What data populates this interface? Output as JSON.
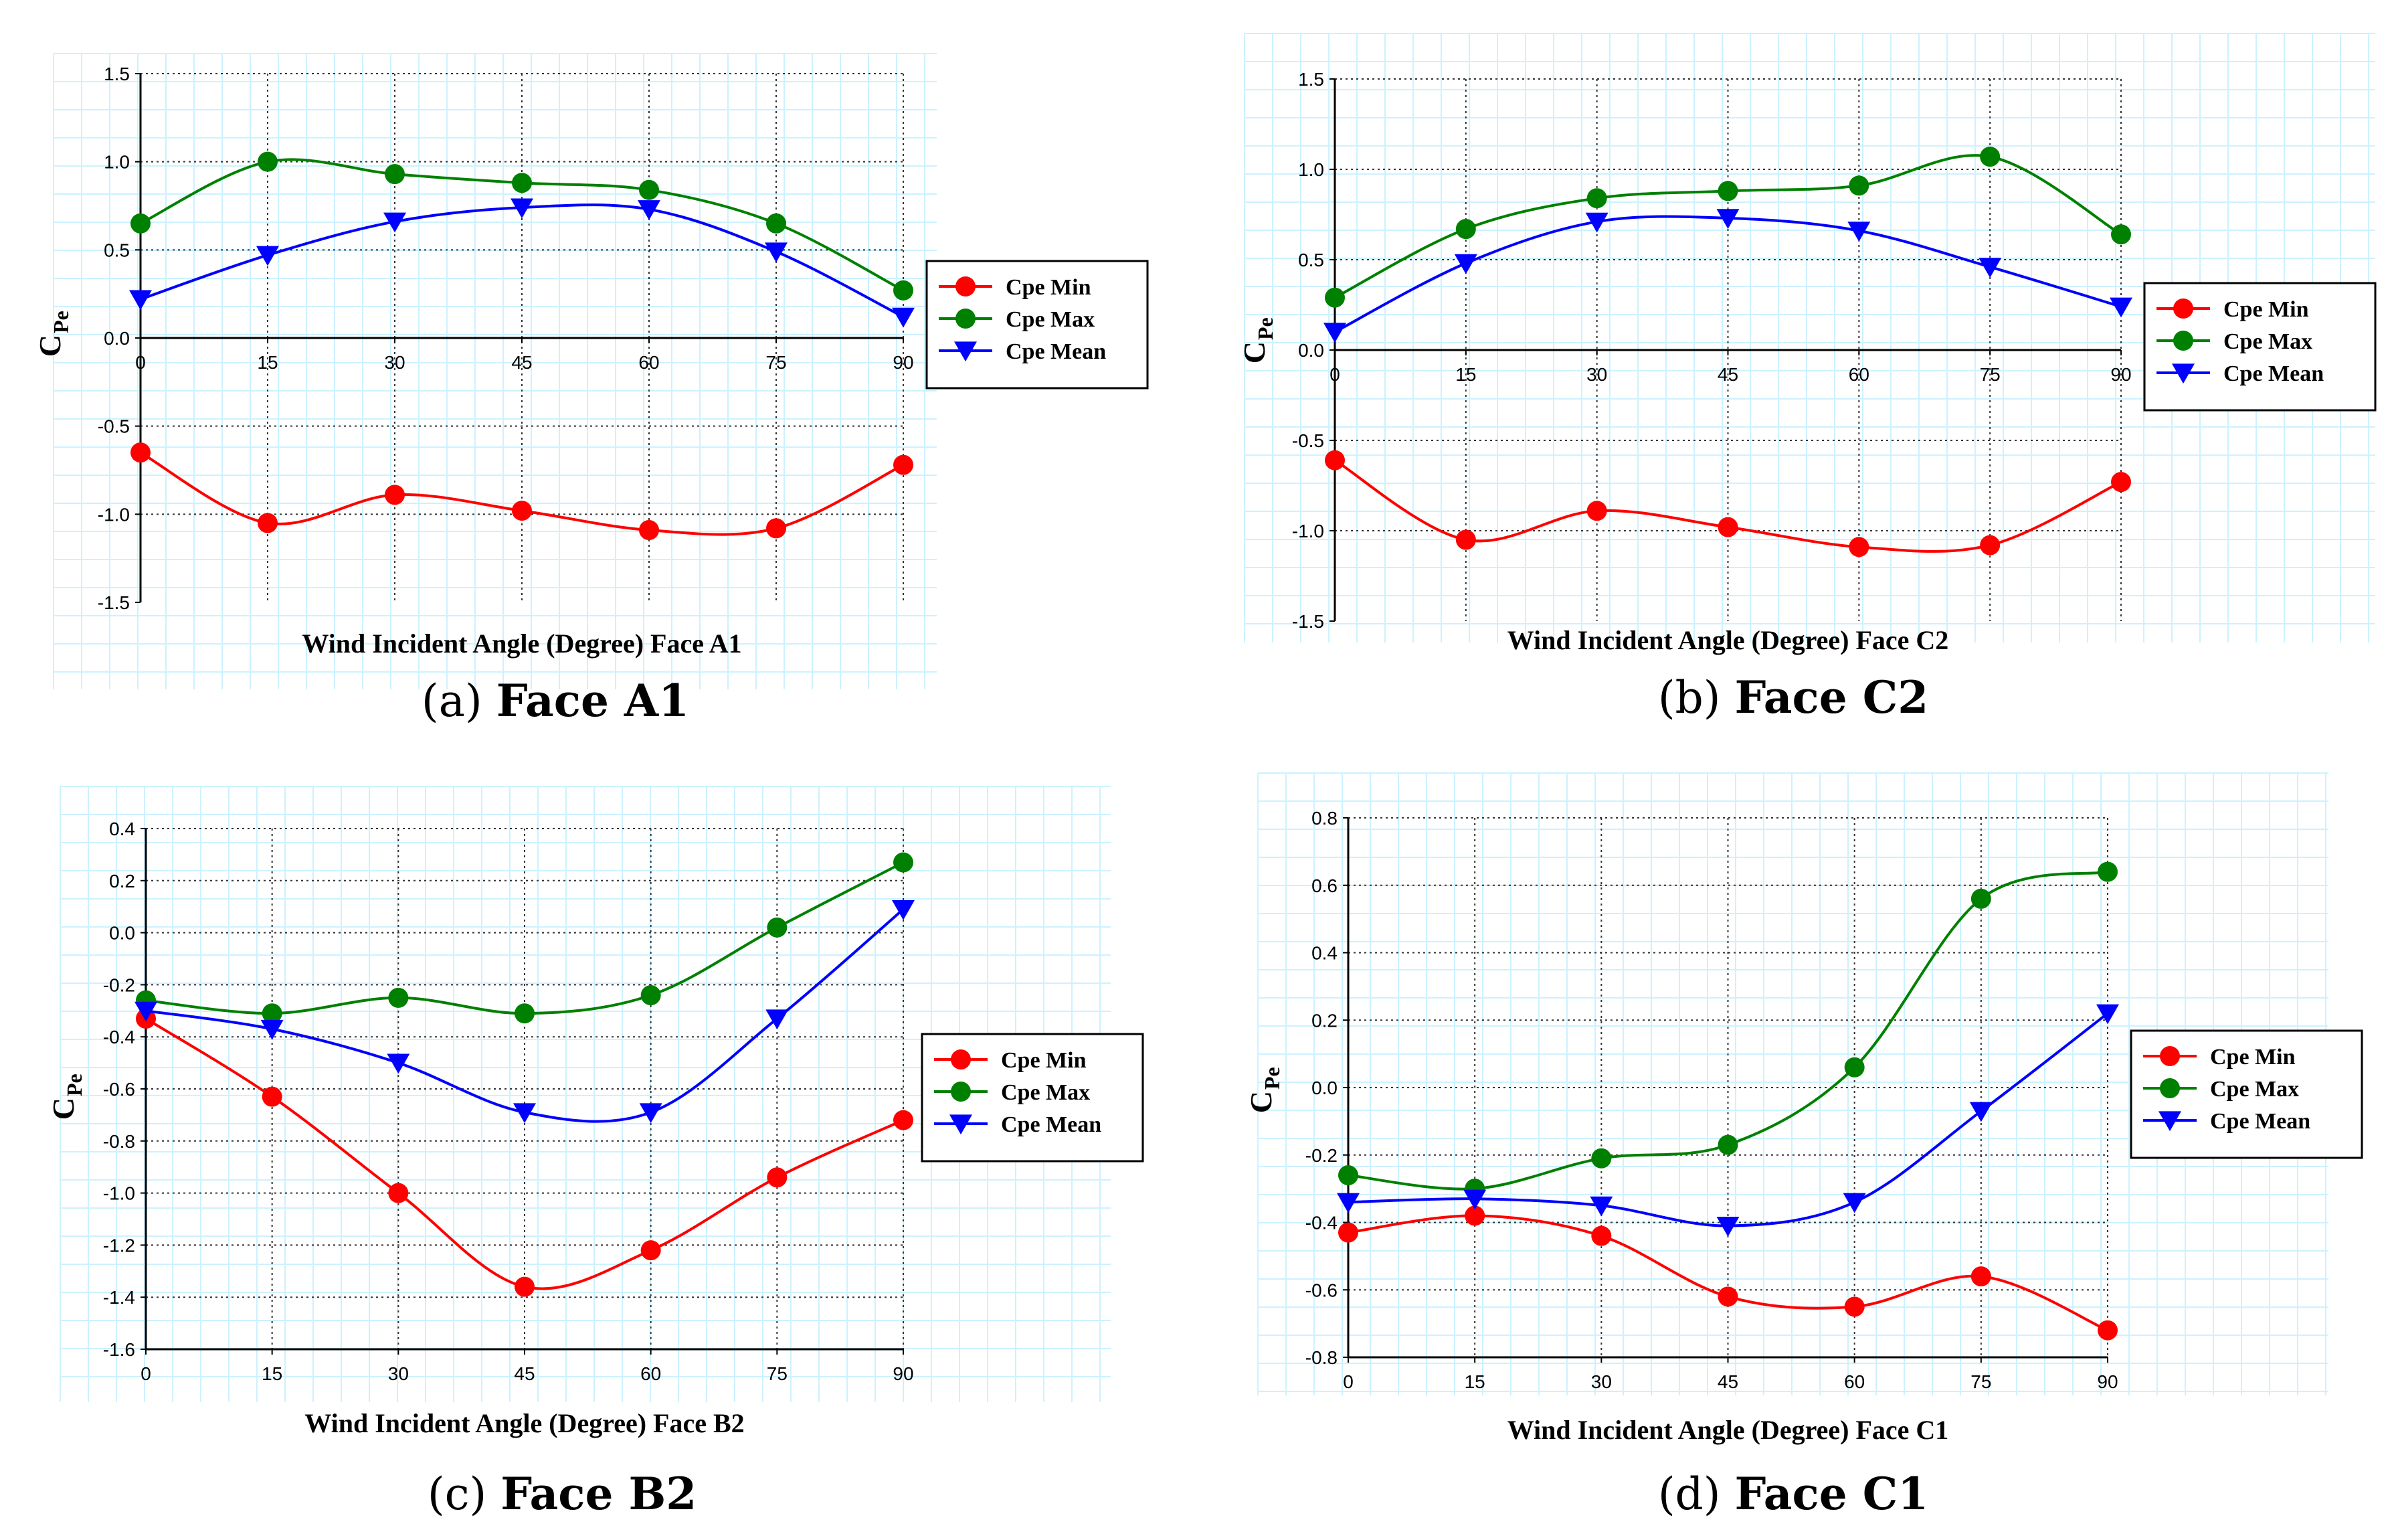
{
  "chart_data": [
    {
      "type": "line",
      "caption_label": "(a)",
      "caption_title": "Face A1",
      "xlabel": "Wind Incident Angle (Degree) Face A1",
      "ylabel_main": "C",
      "ylabel_sub": "Pe",
      "x": [
        0,
        15,
        30,
        45,
        60,
        75,
        90
      ],
      "xlim": [
        0,
        90
      ],
      "ylim": [
        -1.5,
        1.5
      ],
      "yticks": [
        -1.5,
        -1.0,
        -0.5,
        0.0,
        0.5,
        1.0,
        1.5
      ],
      "ytick_labels": [
        "-1.5",
        "-1.0",
        "-0.5",
        "0.0",
        "0.5",
        "1.0",
        "1.5"
      ],
      "xticks": [
        "0",
        "15",
        "30",
        "45",
        "60",
        "75",
        "90"
      ],
      "xaxis_at_zero": true,
      "grid": true,
      "legend": "right",
      "series": [
        {
          "name": "Cpe Min",
          "values": [
            -0.65,
            -1.05,
            -0.89,
            -0.98,
            -1.09,
            -1.08,
            -0.72
          ]
        },
        {
          "name": "Cpe Max",
          "values": [
            0.65,
            1.0,
            0.93,
            0.88,
            0.84,
            0.65,
            0.27
          ]
        },
        {
          "name": "Cpe Mean",
          "values": [
            0.22,
            0.47,
            0.66,
            0.74,
            0.73,
            0.49,
            0.12
          ]
        }
      ]
    },
    {
      "type": "line",
      "caption_label": "(b)",
      "caption_title": "Face C2",
      "xlabel": "Wind Incident Angle (Degree) Face C2",
      "ylabel_main": "C",
      "ylabel_sub": "Pe",
      "x": [
        0,
        15,
        30,
        45,
        60,
        75,
        90
      ],
      "xlim": [
        0,
        90
      ],
      "ylim": [
        -1.5,
        1.5
      ],
      "yticks": [
        -1.5,
        -1.0,
        -0.5,
        0.0,
        0.5,
        1.0,
        1.5
      ],
      "ytick_labels": [
        "-1.5",
        "-1.0",
        "-0.5",
        "0.0",
        "0.5",
        "1.0",
        "1.5"
      ],
      "xticks": [
        "0",
        "15",
        "30",
        "45",
        "60",
        "75",
        "90"
      ],
      "xaxis_at_zero": true,
      "grid": true,
      "legend": "right",
      "series": [
        {
          "name": "Cpe Min",
          "values": [
            -0.61,
            -1.05,
            -0.89,
            -0.98,
            -1.09,
            -1.08,
            -0.73
          ]
        },
        {
          "name": "Cpe Max",
          "values": [
            0.29,
            0.67,
            0.84,
            0.88,
            0.91,
            1.07,
            0.64
          ]
        },
        {
          "name": "Cpe Mean",
          "values": [
            0.1,
            0.48,
            0.71,
            0.73,
            0.66,
            0.46,
            0.24
          ]
        }
      ]
    },
    {
      "type": "line",
      "caption_label": "(c)",
      "caption_title": "Face B2",
      "xlabel": "Wind Incident Angle (Degree) Face B2",
      "ylabel_main": "C",
      "ylabel_sub": "Pe",
      "x": [
        0,
        15,
        30,
        45,
        60,
        75,
        90
      ],
      "xlim": [
        0,
        90
      ],
      "ylim": [
        -1.6,
        0.4
      ],
      "yticks": [
        -1.6,
        -1.4,
        -1.2,
        -1.0,
        -0.8,
        -0.6,
        -0.4,
        -0.2,
        0.0,
        0.2,
        0.4
      ],
      "ytick_labels": [
        "-1.6",
        "-1.4",
        "-1.2",
        "-1.0",
        "-0.8",
        "-0.6",
        "-0.4",
        "-0.2",
        "0.0",
        "0.2",
        "0.4"
      ],
      "xticks": [
        "0",
        "15",
        "30",
        "45",
        "60",
        "75",
        "90"
      ],
      "xaxis_at_zero": false,
      "grid": true,
      "legend": "right",
      "series": [
        {
          "name": "Cpe Min",
          "values": [
            -0.33,
            -0.63,
            -1.0,
            -1.36,
            -1.22,
            -0.94,
            -0.72
          ]
        },
        {
          "name": "Cpe Max",
          "values": [
            -0.26,
            -0.31,
            -0.25,
            -0.31,
            -0.24,
            0.02,
            0.27
          ]
        },
        {
          "name": "Cpe Mean",
          "values": [
            -0.3,
            -0.37,
            -0.5,
            -0.69,
            -0.69,
            -0.33,
            0.09
          ]
        }
      ]
    },
    {
      "type": "line",
      "caption_label": "(d)",
      "caption_title": "Face C1",
      "xlabel": "Wind Incident Angle (Degree) Face C1",
      "ylabel_main": "C",
      "ylabel_sub": "Pe",
      "x": [
        0,
        15,
        30,
        45,
        60,
        75,
        90
      ],
      "xlim": [
        0,
        90
      ],
      "ylim": [
        -0.8,
        0.8
      ],
      "yticks": [
        -0.8,
        -0.6,
        -0.4,
        -0.2,
        0.0,
        0.2,
        0.4,
        0.6,
        0.8
      ],
      "ytick_labels": [
        "-0.8",
        "-0.6",
        "-0.4",
        "-0.2",
        "0.0",
        "0.2",
        "0.4",
        "0.6",
        "0.8"
      ],
      "xticks": [
        "0",
        "15",
        "30",
        "45",
        "60",
        "75",
        "90"
      ],
      "xaxis_at_zero": false,
      "grid": true,
      "legend": "right",
      "series": [
        {
          "name": "Cpe Min",
          "values": [
            -0.43,
            -0.38,
            -0.44,
            -0.62,
            -0.65,
            -0.56,
            -0.72
          ]
        },
        {
          "name": "Cpe Max",
          "values": [
            -0.26,
            -0.3,
            -0.21,
            -0.17,
            0.06,
            0.56,
            0.64
          ]
        },
        {
          "name": "Cpe Mean",
          "values": [
            -0.34,
            -0.33,
            -0.35,
            -0.41,
            -0.34,
            -0.07,
            0.22
          ]
        }
      ]
    }
  ],
  "colors": {
    "min": "#ff0000",
    "max": "#008000",
    "mean": "#0000ff",
    "background_grid": "#ccf2ff"
  }
}
